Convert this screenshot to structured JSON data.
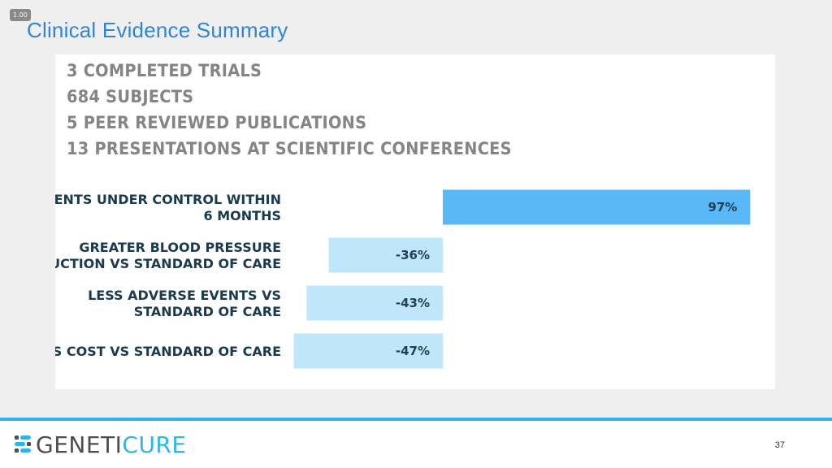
{
  "zoom": "1.00",
  "slide": {
    "title": "Clinical Evidence Summary",
    "page_number": "37"
  },
  "stats": [
    "3 COMPLETED TRIALS",
    "684 SUBJECTS",
    "5 PEER REVIEWED PUBLICATIONS",
    "13 PRESENTATIONS AT SCIENTIFIC CONFERENCES"
  ],
  "chart_data": {
    "type": "bar",
    "orientation": "horizontal",
    "categories": [
      [
        "PATIENTS UNDER CONTROL WITHIN",
        "6 MONTHS"
      ],
      [
        "GREATER BLOOD PRESSURE",
        "REDUCTION VS STANDARD OF CARE"
      ],
      [
        "LESS ADVERSE EVENTS VS",
        "STANDARD OF CARE"
      ],
      [
        "LESS COST VS STANDARD OF CARE"
      ]
    ],
    "values": [
      97,
      -36,
      -43,
      -47
    ],
    "value_labels": [
      "97%",
      "-36%",
      "-43%",
      "-47%"
    ],
    "colors": [
      "#59b8f5",
      "#bfe6fb",
      "#bfe6fb",
      "#bfe6fb"
    ],
    "grid": false
  },
  "logo": {
    "text_a": "GENETI",
    "text_b": "CURE",
    "colors": {
      "dark": "#4d4d4d",
      "accent": "#2fb5ea"
    }
  }
}
